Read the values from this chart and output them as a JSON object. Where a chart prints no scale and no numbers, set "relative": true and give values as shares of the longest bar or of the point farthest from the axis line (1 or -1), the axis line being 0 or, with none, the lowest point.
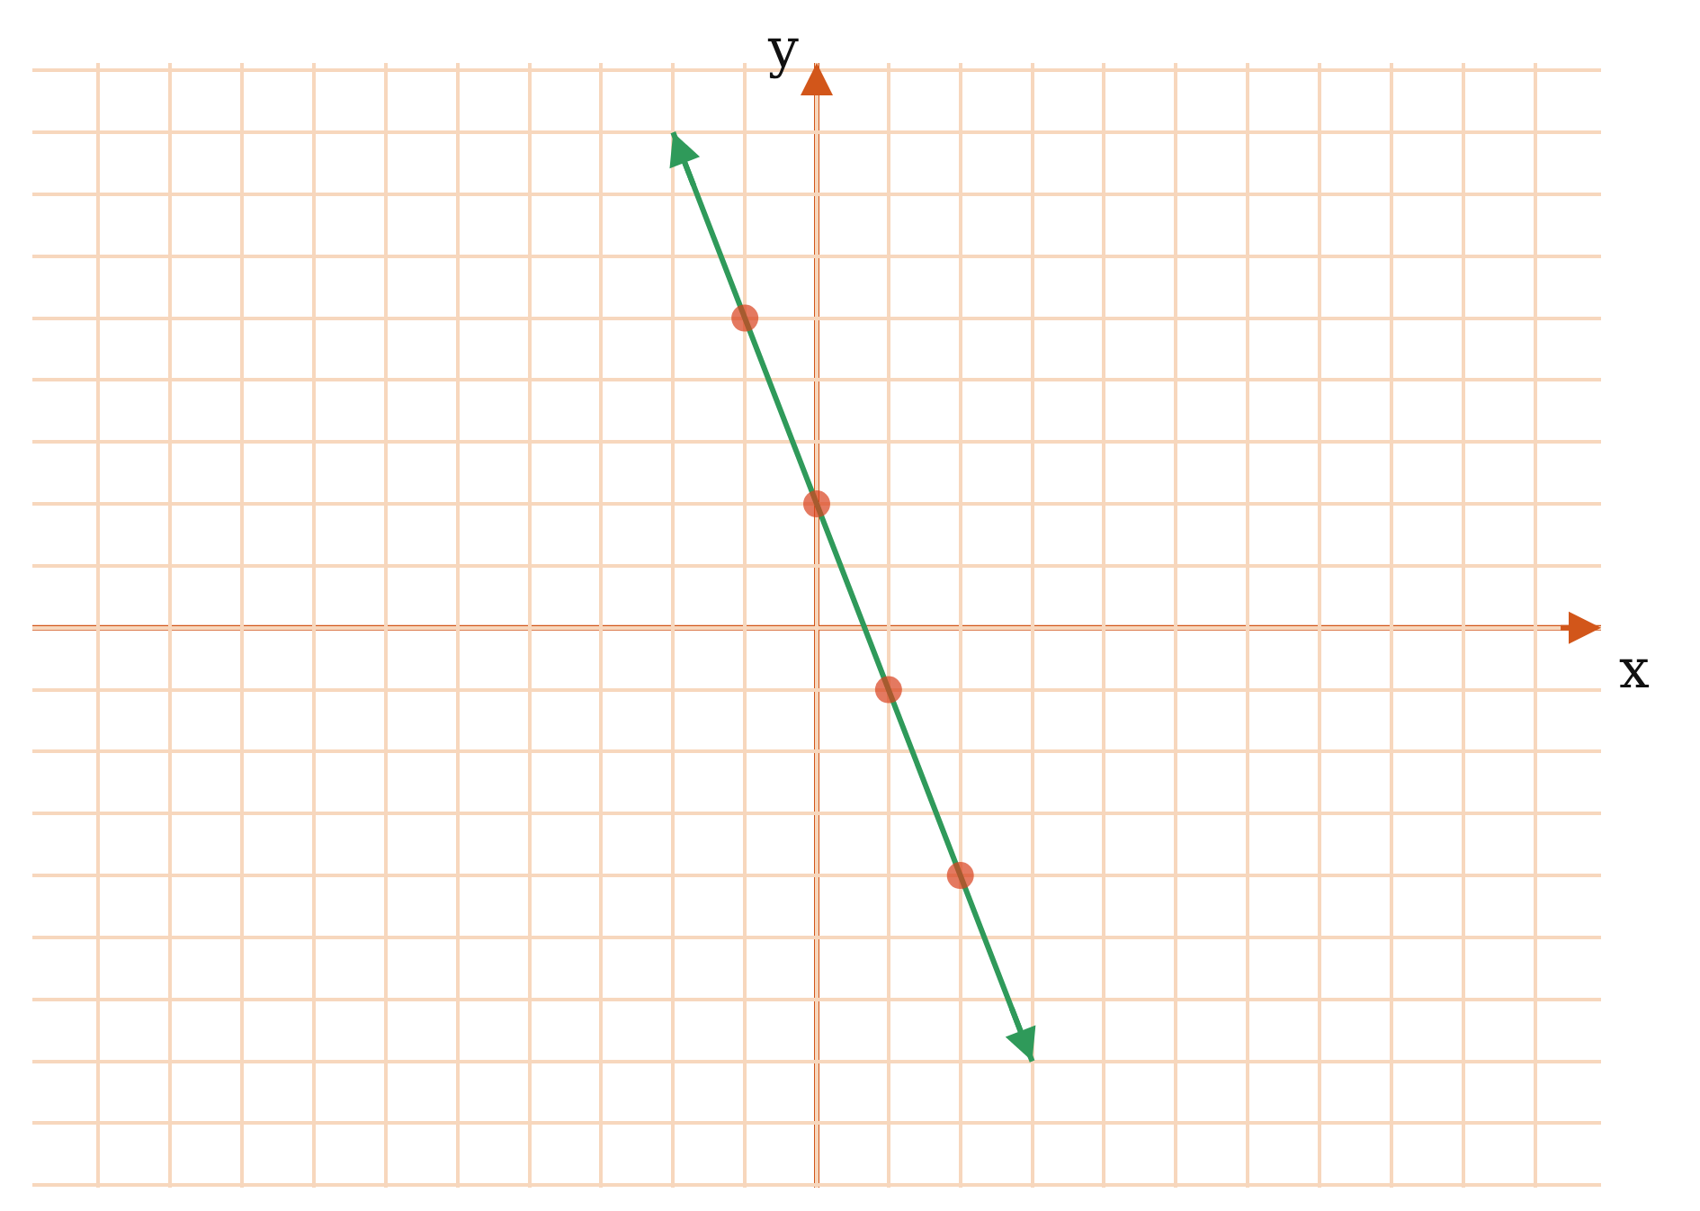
{
  "chart_data": {
    "type": "line",
    "xlabel": "x",
    "ylabel": "y",
    "relative": true,
    "categories": [
      null,
      null,
      null,
      null,
      null,
      null,
      null,
      null,
      null,
      null,
      null,
      null,
      null,
      null,
      null,
      null,
      null,
      null,
      null,
      null,
      null
    ],
    "series": [
      {
        "color": "#2f9a5a",
        "marker": "circle",
        "values": [
          null,
          null,
          null,
          null,
          null,
          null,
          null,
          null,
          1,
          0.625,
          0.25,
          -0.125,
          -0.5,
          -0.875,
          null,
          null,
          null,
          null,
          null,
          null,
          null
        ],
        "colors": [
          null,
          null,
          null,
          null,
          null,
          null,
          null,
          null,
          null,
          "#d8401c",
          "#d8401c",
          "#d8401c",
          "#d8401c",
          null,
          null,
          null,
          null,
          null,
          null,
          null,
          null
        ]
      }
    ],
    "ref_lines": [
      {
        "axis": "y",
        "value": 0,
        "color": "#d2561a"
      }
    ],
    "grid": true
  }
}
